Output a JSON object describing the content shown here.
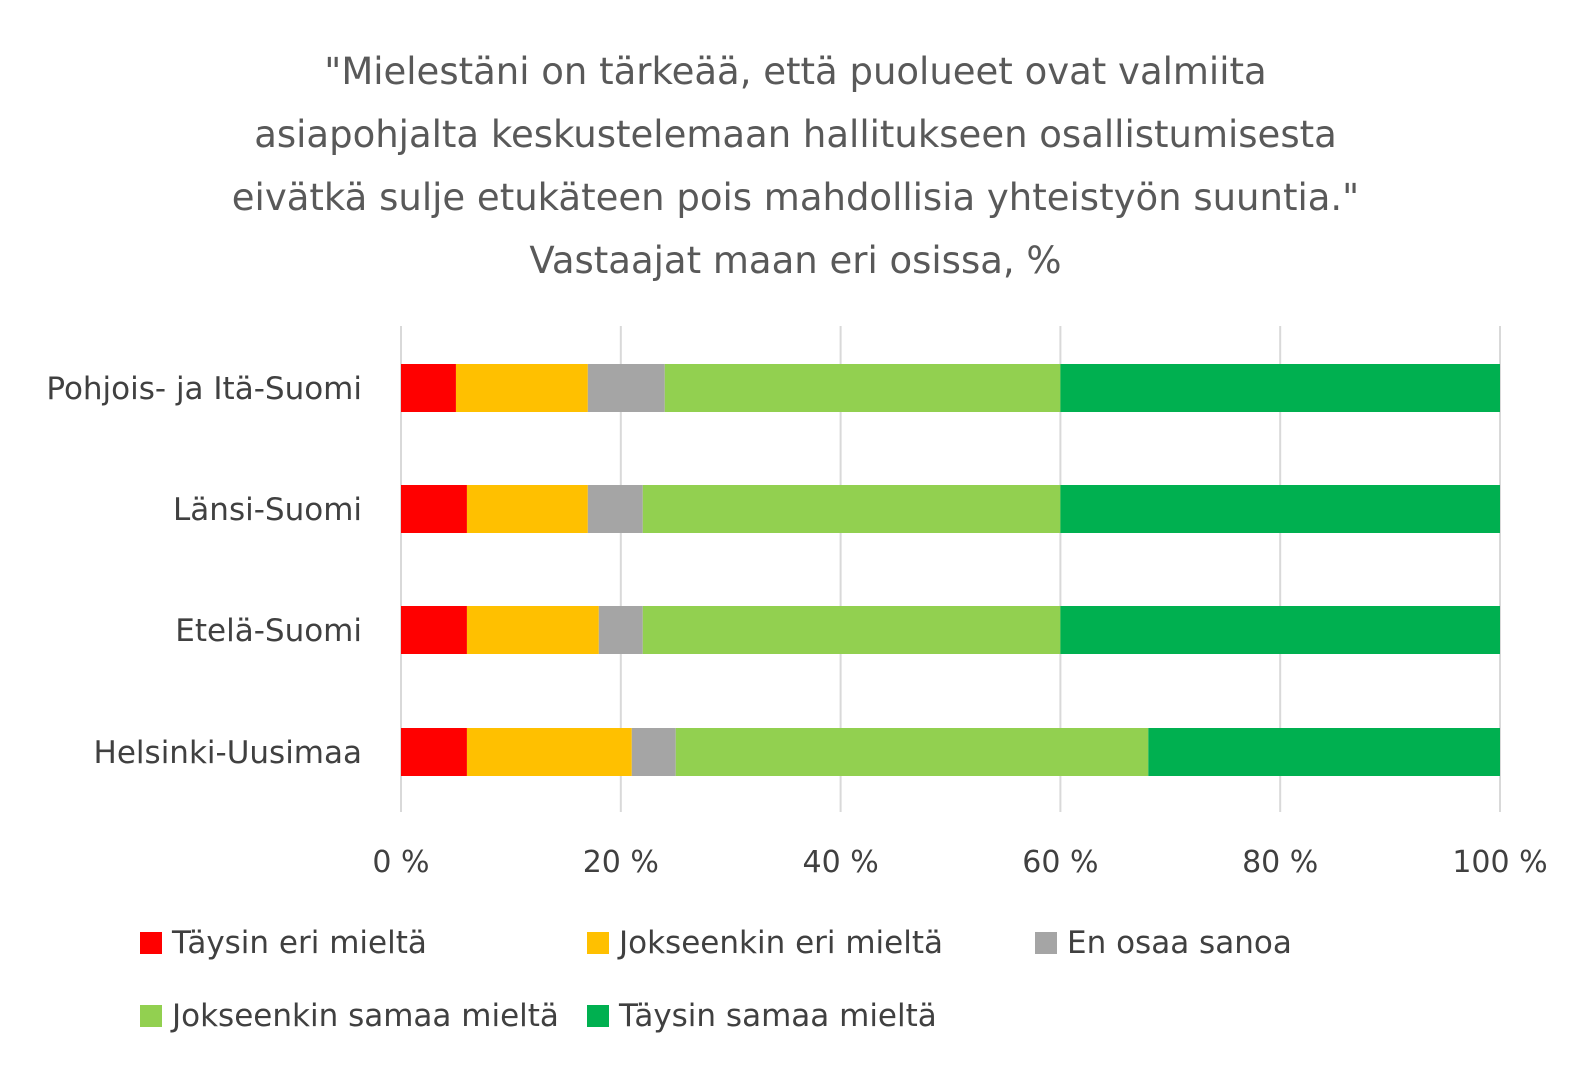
{
  "chart_data": {
    "type": "bar",
    "orientation": "horizontal",
    "stacked": "percent",
    "title_lines": [
      "\"Mielestäni on tärkeää, että puolueet ovat valmiita",
      "asiapohjalta keskustelemaan hallitukseen osallistumisesta",
      "eivätkä sulje etukäteen pois mahdollisia yhteistyön suuntia.\"",
      "Vastaajat maan eri osissa, %"
    ],
    "categories": [
      "Pohjois- ja Itä-Suomi",
      "Länsi-Suomi",
      "Etelä-Suomi",
      "Helsinki-Uusimaa"
    ],
    "series": [
      {
        "name": "Täysin eri mieltä",
        "color": "#ff0000",
        "values": [
          5,
          6,
          6,
          6
        ]
      },
      {
        "name": "Jokseenkin eri mieltä",
        "color": "#ffc000",
        "values": [
          12,
          11,
          12,
          15
        ]
      },
      {
        "name": "En osaa sanoa",
        "color": "#a5a5a5",
        "values": [
          7,
          5,
          4,
          4
        ]
      },
      {
        "name": "Jokseenkin samaa mieltä",
        "color": "#92d050",
        "values": [
          36,
          38,
          38,
          43
        ]
      },
      {
        "name": "Täysin samaa mieltä",
        "color": "#00b050",
        "values": [
          40,
          40,
          40,
          32
        ]
      }
    ],
    "xlim": [
      0,
      100
    ],
    "xticks": [
      0,
      20,
      40,
      60,
      80,
      100
    ],
    "xtick_labels": [
      "0 %",
      "20 %",
      "40 %",
      "60 %",
      "80 %",
      "100 %"
    ],
    "grid": true,
    "legend_position": "bottom"
  }
}
